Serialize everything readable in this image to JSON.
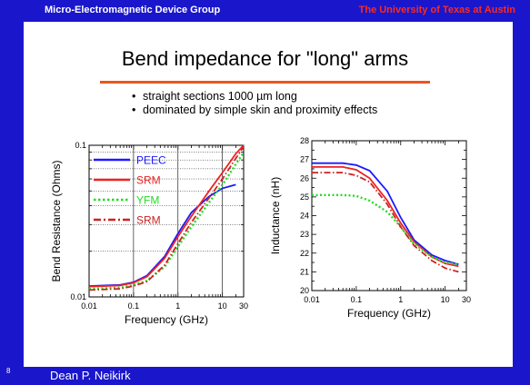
{
  "header": {
    "left": "Micro-Electromagnetic Device Group",
    "right": "The University of Texas at Austin"
  },
  "title": "Bend impedance for \"long\" arms",
  "bullets": [
    "straight sections 1000 µm long",
    "dominated by simple skin and proximity effects"
  ],
  "footer": {
    "page": "8",
    "author": "Dean P.  Neikirk"
  },
  "colors": {
    "frame": "#1a16cc",
    "accent": "#e8571e",
    "header_right": "#ff2a1a",
    "peec": "#1a1aff",
    "srm": "#ee2222",
    "yfm": "#22dd22",
    "srm2": "#cc2222"
  },
  "chart_data": [
    {
      "type": "line",
      "xlabel": "Frequency (GHz)",
      "ylabel": "Bend Resistance (Ohms)",
      "xscale": "log",
      "yscale": "log",
      "xlim": [
        0.01,
        30
      ],
      "ylim": [
        0.01,
        0.1
      ],
      "xticks": [
        0.01,
        0.1,
        1,
        10,
        30
      ],
      "xtick_labels": [
        "0.01",
        "0.1",
        "1",
        "10",
        "30"
      ],
      "yticks": [
        0.01,
        0.1
      ],
      "ytick_labels": [
        "0.01",
        "0.1"
      ],
      "grid": true,
      "legend": "top-left",
      "series": [
        {
          "name": "PEEC",
          "color": "#1a1aff",
          "dash": "solid",
          "x": [
            0.01,
            0.05,
            0.1,
            0.2,
            0.5,
            1,
            2,
            5,
            10,
            20
          ],
          "y": [
            0.0118,
            0.012,
            0.0125,
            0.0138,
            0.0185,
            0.0262,
            0.036,
            0.046,
            0.052,
            0.055
          ]
        },
        {
          "name": "SRM",
          "color": "#ee2222",
          "dash": "solid",
          "x": [
            0.01,
            0.05,
            0.1,
            0.2,
            0.5,
            1,
            2,
            5,
            10,
            20,
            30
          ],
          "y": [
            0.0117,
            0.0119,
            0.0124,
            0.0136,
            0.018,
            0.025,
            0.034,
            0.05,
            0.066,
            0.088,
            0.1
          ]
        },
        {
          "name": "YFM",
          "color": "#22dd22",
          "dash": "dot",
          "x": [
            0.01,
            0.05,
            0.1,
            0.2,
            0.5,
            1,
            2,
            5,
            10,
            20,
            30
          ],
          "y": [
            0.0113,
            0.0115,
            0.012,
            0.0128,
            0.0158,
            0.0215,
            0.029,
            0.042,
            0.055,
            0.075,
            0.09
          ]
        },
        {
          "name": "SRM",
          "color": "#cc2222",
          "dash": "dashdot",
          "x": [
            0.01,
            0.05,
            0.1,
            0.2,
            0.5,
            1,
            2,
            5,
            10,
            20,
            30
          ],
          "y": [
            0.0111,
            0.0113,
            0.0118,
            0.0126,
            0.0162,
            0.0225,
            0.031,
            0.045,
            0.06,
            0.082,
            0.098
          ]
        }
      ]
    },
    {
      "type": "line",
      "xlabel": "Frequency (GHz)",
      "ylabel": "Inductance (nH)",
      "xscale": "log",
      "yscale": "linear",
      "xlim": [
        0.01,
        30
      ],
      "ylim": [
        20,
        28
      ],
      "xticks": [
        0.01,
        0.1,
        1,
        10,
        30
      ],
      "xtick_labels": [
        "0.01",
        "0.1",
        "1",
        "10",
        "30"
      ],
      "yticks": [
        20,
        21,
        22,
        23,
        24,
        25,
        26,
        27,
        28
      ],
      "ytick_labels": [
        "20",
        "21",
        "22",
        "23",
        "24",
        "25",
        "26",
        "27",
        "28"
      ],
      "grid": false,
      "series": [
        {
          "name": "PEEC",
          "color": "#1a1aff",
          "dash": "solid",
          "x": [
            0.01,
            0.05,
            0.1,
            0.2,
            0.5,
            1,
            2,
            5,
            10,
            20
          ],
          "y": [
            26.8,
            26.8,
            26.7,
            26.4,
            25.3,
            23.9,
            22.7,
            21.9,
            21.6,
            21.4
          ]
        },
        {
          "name": "SRM",
          "color": "#ee2222",
          "dash": "solid",
          "x": [
            0.01,
            0.05,
            0.1,
            0.2,
            0.5,
            1,
            2,
            5,
            10,
            20
          ],
          "y": [
            26.6,
            26.6,
            26.45,
            26.0,
            24.8,
            23.6,
            22.6,
            21.8,
            21.45,
            21.3
          ]
        },
        {
          "name": "YFM",
          "color": "#22dd22",
          "dash": "dot",
          "x": [
            0.01,
            0.05,
            0.1,
            0.2,
            0.5,
            1,
            2,
            5,
            10,
            20
          ],
          "y": [
            25.1,
            25.1,
            25.05,
            24.8,
            24.2,
            23.4,
            22.5,
            21.8,
            21.5,
            21.4
          ]
        },
        {
          "name": "SRM",
          "color": "#cc2222",
          "dash": "dashdot",
          "x": [
            0.01,
            0.05,
            0.1,
            0.2,
            0.5,
            1,
            2,
            5,
            10,
            20
          ],
          "y": [
            26.3,
            26.3,
            26.15,
            25.8,
            24.6,
            23.4,
            22.4,
            21.6,
            21.2,
            21.0
          ]
        }
      ]
    }
  ]
}
